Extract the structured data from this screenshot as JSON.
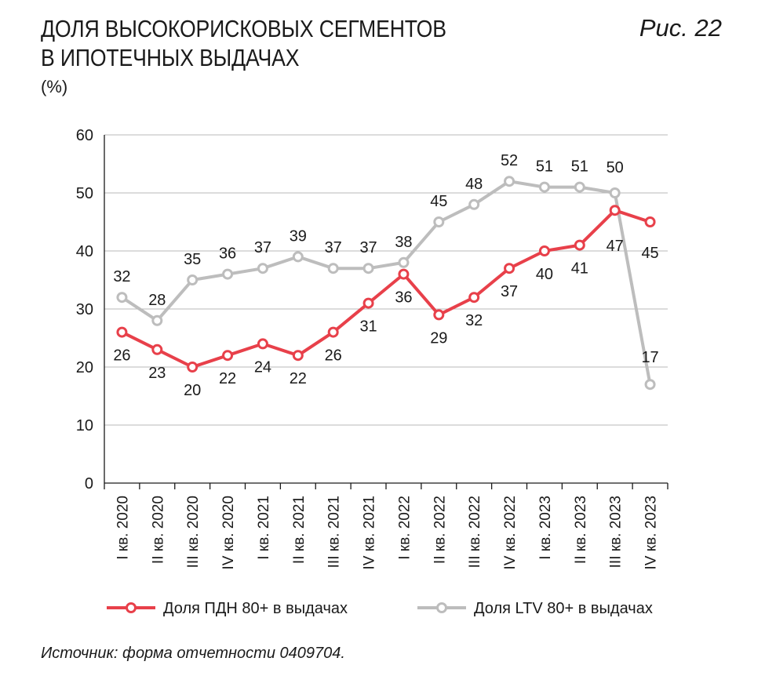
{
  "header": {
    "title_line1": "ДОЛЯ ВЫСОКОРИСКОВЫХ СЕГМЕНТОВ",
    "title_line2": "В ИПОТЕЧНЫХ ВЫДАЧАХ",
    "figure_label": "Рис. 22",
    "unit": "(%)"
  },
  "footer": {
    "source": "Источник: форма отчетности 0409704."
  },
  "chart_data": {
    "type": "line",
    "categories": [
      "I кв. 2020",
      "II кв. 2020",
      "III кв. 2020",
      "IV кв. 2020",
      "I кв. 2021",
      "II кв. 2021",
      "III кв. 2021",
      "IV кв. 2021",
      "I кв. 2022",
      "II кв. 2022",
      "III кв. 2022",
      "IV кв. 2022",
      "I кв. 2023",
      "II кв. 2023",
      "III кв. 2023",
      "IV кв. 2023"
    ],
    "series": [
      {
        "name": "Доля ПДН 80+ в выдачах",
        "color": "#e8404a",
        "values": [
          26,
          23,
          20,
          22,
          24,
          22,
          26,
          31,
          36,
          29,
          32,
          37,
          40,
          41,
          47,
          45
        ]
      },
      {
        "name": "Доля LTV 80+ в выдачах",
        "color": "#bdbdbd",
        "values": [
          32,
          28,
          35,
          36,
          37,
          39,
          37,
          37,
          38,
          45,
          48,
          52,
          51,
          51,
          50,
          17
        ]
      }
    ],
    "ylim": [
      0,
      60
    ],
    "yticks": [
      0,
      10,
      20,
      30,
      40,
      50,
      60
    ],
    "grid": true,
    "legend_position": "bottom"
  }
}
